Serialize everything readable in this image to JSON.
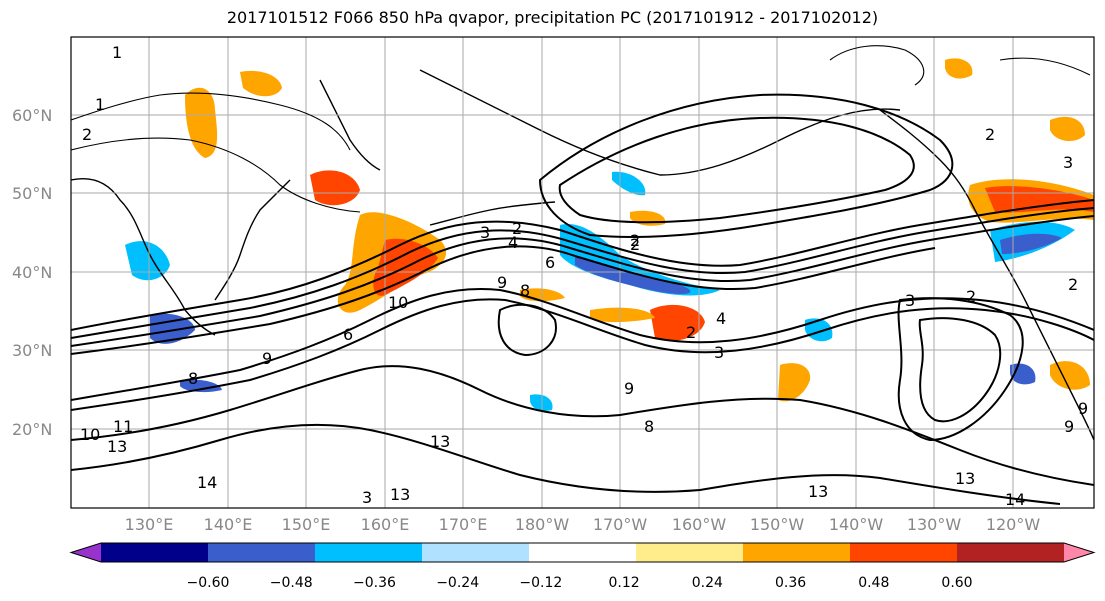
{
  "title": "2017101512 F066 850 hPa qvapor, precipitation PC (2017101912 - 2017102012)",
  "lat_labels": [
    "60°N",
    "50°N",
    "40°N",
    "30°N",
    "20°N"
  ],
  "lon_labels": [
    "130°E",
    "140°E",
    "150°E",
    "160°E",
    "170°E",
    "180°W",
    "170°W",
    "160°W",
    "150°W",
    "140°W",
    "130°W",
    "120°W"
  ],
  "colorbar": {
    "colors": [
      "#9932CC",
      "#00008B",
      "#3A5FCD",
      "#00BFFF",
      "#B0E2FF",
      "#FFFFFF",
      "#FFEC8B",
      "#FFA500",
      "#FF4500",
      "#B22222",
      "#FF88AA"
    ],
    "tick_labels": [
      "−0.60",
      "−0.48",
      "−0.36",
      "−0.24",
      "−0.12",
      "0.12",
      "0.24",
      "0.36",
      "0.48",
      "0.60"
    ]
  },
  "contour_labels": [
    "1",
    "1",
    "2",
    "2",
    "3",
    "2",
    "4",
    "6",
    "9",
    "8",
    "10",
    "9",
    "8",
    "6",
    "2",
    "4",
    "3",
    "9",
    "8",
    "11",
    "13",
    "10",
    "13",
    "14",
    "13",
    "13",
    "13",
    "14",
    "9",
    "9",
    "3",
    "2",
    "3",
    "2",
    "2",
    "3",
    "2"
  ]
}
